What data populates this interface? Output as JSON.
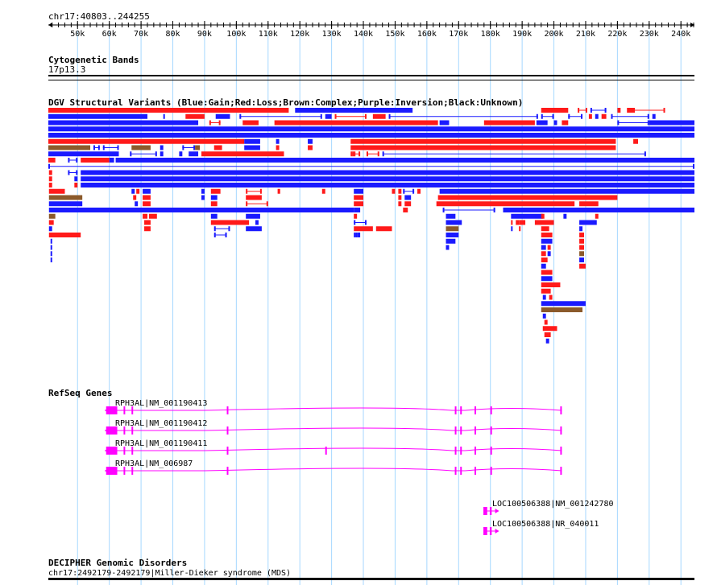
{
  "region": {
    "label": "chr17:40803..244255",
    "start": 40803,
    "end": 244255
  },
  "ruler": {
    "ticks": [
      "50k",
      "60k",
      "70k",
      "80k",
      "90k",
      "100k",
      "110k",
      "120k",
      "130k",
      "140k",
      "150k",
      "160k",
      "170k",
      "180k",
      "190k",
      "200k",
      "210k",
      "220k",
      "230k",
      "240k"
    ]
  },
  "tracks": {
    "cytoband": {
      "title": "Cytogenetic Bands",
      "band": "17p13.3"
    },
    "dgv": {
      "title": "DGV Structural Variants (Blue:Gain;Red:Loss;Brown:Complex;Purple:Inversion;Black:Unknown)"
    },
    "refseq": {
      "title": "RefSeq Genes"
    },
    "decipher": {
      "title": "DECIPHER Genomic Disorders",
      "label": "chr17:2492179-2492179|Miller-Dieker syndrome (MDS)"
    }
  },
  "colors": {
    "gain": "#1a1aff",
    "loss": "#ff1a1a",
    "complex": "#8b5a2b",
    "gene": "#ff00ff",
    "grid": "#a6d8ff"
  },
  "genes": [
    {
      "label": "RPH3AL|NM_001190413",
      "start": 59000,
      "end": 202500,
      "strand": "-",
      "exons": [
        [
          59000,
          62500
        ],
        [
          64500,
          65000
        ],
        [
          67000,
          67500
        ],
        [
          97000,
          97500
        ],
        [
          168800,
          169300
        ],
        [
          170500,
          171000
        ],
        [
          175000,
          175500
        ],
        [
          180000,
          180500
        ],
        [
          202000,
          202500
        ]
      ]
    },
    {
      "label": "RPH3AL|NM_001190412",
      "start": 59000,
      "end": 202500,
      "strand": "-",
      "exons": [
        [
          59000,
          62500
        ],
        [
          64500,
          65000
        ],
        [
          67000,
          67500
        ],
        [
          97000,
          97500
        ],
        [
          168800,
          169300
        ],
        [
          170500,
          171000
        ],
        [
          175000,
          175500
        ],
        [
          180000,
          180500
        ],
        [
          202000,
          202500
        ]
      ]
    },
    {
      "label": "RPH3AL|NM_001190411",
      "start": 59000,
      "end": 202500,
      "strand": "-",
      "exons": [
        [
          59000,
          62500
        ],
        [
          64500,
          65000
        ],
        [
          67000,
          67500
        ],
        [
          97000,
          97500
        ],
        [
          128000,
          128500
        ],
        [
          168800,
          169300
        ],
        [
          170500,
          171000
        ],
        [
          175000,
          175500
        ],
        [
          180000,
          180500
        ],
        [
          202000,
          202500
        ]
      ]
    },
    {
      "label": "RPH3AL|NM_006987",
      "start": 59000,
      "end": 202500,
      "strand": "-",
      "exons": [
        [
          59000,
          62500
        ],
        [
          64500,
          65000
        ],
        [
          67000,
          67500
        ],
        [
          97000,
          97500
        ],
        [
          168800,
          169300
        ],
        [
          170500,
          171000
        ],
        [
          175000,
          175500
        ],
        [
          180000,
          180500
        ],
        [
          202000,
          202500
        ]
      ]
    },
    {
      "label": "LOC100506388|NM_001242780",
      "start": 177800,
      "end": 182000,
      "strand": "+",
      "exons": [
        [
          177800,
          179000
        ],
        [
          179800,
          180400
        ]
      ]
    },
    {
      "label": "LOC100506388|NR_040011",
      "start": 177800,
      "end": 182000,
      "strand": "+",
      "exons": [
        [
          177800,
          179000
        ],
        [
          179800,
          180400
        ]
      ]
    }
  ],
  "dgv_rows": [
    [
      [
        40803,
        116500,
        "L"
      ],
      [
        118500,
        155500,
        "G"
      ],
      [
        196000,
        204500,
        "L"
      ],
      [
        207500,
        210500,
        "L",
        1
      ],
      [
        211500,
        216500,
        "G",
        1
      ],
      [
        220000,
        221000,
        "L"
      ],
      [
        223000,
        225500,
        "L"
      ],
      [
        224500,
        235000,
        "L",
        1
      ]
    ],
    [
      [
        40803,
        72000,
        "G"
      ],
      [
        77000,
        77500,
        "G"
      ],
      [
        84000,
        90000,
        "L"
      ],
      [
        93500,
        98000,
        "G"
      ],
      [
        101000,
        127000,
        "G",
        1
      ],
      [
        128000,
        130000,
        "G"
      ],
      [
        131000,
        141000,
        "L",
        1
      ],
      [
        143000,
        147000,
        "L"
      ],
      [
        148000,
        195000,
        "G",
        1
      ],
      [
        196000,
        200000,
        "G",
        1
      ],
      [
        204500,
        209000,
        "G",
        1
      ],
      [
        211000,
        212000,
        "L"
      ],
      [
        213000,
        214000,
        "G"
      ],
      [
        215000,
        216500,
        "L"
      ],
      [
        218000,
        230000,
        "G",
        1
      ],
      [
        231000,
        232000,
        "G"
      ]
    ],
    [
      [
        40803,
        88000,
        "G"
      ],
      [
        91500,
        95000,
        "L",
        1
      ],
      [
        102000,
        107000,
        "L"
      ],
      [
        112000,
        163500,
        "L"
      ],
      [
        164000,
        167000,
        "G"
      ],
      [
        178000,
        194000,
        "L"
      ],
      [
        194500,
        198000,
        "G"
      ],
      [
        200000,
        201000,
        "G"
      ],
      [
        202500,
        204500,
        "L"
      ],
      [
        220000,
        230000,
        "G",
        1
      ],
      [
        230000,
        244255,
        "G"
      ]
    ],
    [
      [
        40803,
        244255,
        "G"
      ]
    ],
    [
      [
        40803,
        244255,
        "G"
      ]
    ],
    [
      [
        40803,
        102500,
        "L"
      ],
      [
        102500,
        107500,
        "G"
      ],
      [
        112500,
        113500,
        "G"
      ],
      [
        122500,
        124000,
        "G"
      ],
      [
        136000,
        219500,
        "L"
      ],
      [
        225000,
        226500,
        "L"
      ]
    ],
    [
      [
        40803,
        54000,
        "C"
      ],
      [
        55000,
        57000,
        "G",
        1
      ],
      [
        58000,
        63000,
        "G",
        1
      ],
      [
        67000,
        73000,
        "C"
      ],
      [
        76000,
        77000,
        "G"
      ],
      [
        83000,
        87000,
        "G",
        1
      ],
      [
        87000,
        88500,
        "C"
      ],
      [
        93000,
        95500,
        "L"
      ],
      [
        102500,
        107500,
        "G"
      ],
      [
        112500,
        113500,
        "L"
      ],
      [
        122500,
        124000,
        "L"
      ],
      [
        136000,
        219500,
        "L"
      ]
    ],
    [
      [
        40803,
        63000,
        "G"
      ],
      [
        66500,
        75000,
        "G",
        1
      ],
      [
        76000,
        77000,
        "G"
      ],
      [
        82000,
        83000,
        "G"
      ],
      [
        85000,
        88000,
        "G"
      ],
      [
        89000,
        115000,
        "L"
      ],
      [
        136000,
        137000,
        "L",
        1
      ],
      [
        137000,
        139000,
        "L",
        1
      ],
      [
        141000,
        145000,
        "L",
        1
      ],
      [
        146000,
        229000,
        "G",
        1
      ]
    ],
    [
      [
        40803,
        43000,
        "L"
      ],
      [
        47000,
        50000,
        "G",
        1
      ],
      [
        51000,
        60000,
        "L"
      ],
      [
        60000,
        61500,
        "G"
      ],
      [
        62000,
        244255,
        "G"
      ]
    ],
    [
      [
        40803,
        244255,
        "G",
        1
      ]
    ],
    [
      [
        41000,
        42000,
        "L"
      ],
      [
        47000,
        50000,
        "G",
        1
      ],
      [
        51000,
        244255,
        "G"
      ]
    ],
    [
      [
        41000,
        42000,
        "L"
      ],
      [
        49000,
        50000,
        "G"
      ],
      [
        51000,
        244255,
        "G"
      ]
    ],
    [
      [
        41000,
        42000,
        "L"
      ],
      [
        49000,
        50000,
        "L"
      ],
      [
        51000,
        244255,
        "G"
      ]
    ],
    [
      [
        41000,
        46000,
        "L"
      ],
      [
        67000,
        68000,
        "G"
      ],
      [
        68500,
        69500,
        "L"
      ],
      [
        70500,
        73000,
        "G"
      ],
      [
        89000,
        90000,
        "G"
      ],
      [
        92000,
        95000,
        "L"
      ],
      [
        103000,
        108000,
        "L",
        1
      ],
      [
        113000,
        113800,
        "L"
      ],
      [
        127000,
        128000,
        "L"
      ],
      [
        137000,
        140000,
        "G"
      ],
      [
        149000,
        150000,
        "L"
      ],
      [
        151000,
        152000,
        "L"
      ],
      [
        152500,
        156000,
        "G",
        1
      ],
      [
        157000,
        158000,
        "L"
      ],
      [
        164000,
        244255,
        "G"
      ]
    ],
    [
      [
        41000,
        51500,
        "C"
      ],
      [
        67500,
        68500,
        "L"
      ],
      [
        70500,
        73000,
        "L"
      ],
      [
        89000,
        90000,
        "G"
      ],
      [
        92000,
        94000,
        "G"
      ],
      [
        103000,
        108000,
        "L"
      ],
      [
        137000,
        140000,
        "L"
      ],
      [
        151000,
        152000,
        "L"
      ],
      [
        153000,
        155000,
        "G"
      ],
      [
        163500,
        220000,
        "L"
      ]
    ],
    [
      [
        41000,
        51500,
        "G"
      ],
      [
        68000,
        69000,
        "G"
      ],
      [
        70500,
        73000,
        "L"
      ],
      [
        92000,
        94000,
        "L"
      ],
      [
        103000,
        110000,
        "L",
        1
      ],
      [
        137000,
        140000,
        "L"
      ],
      [
        151000,
        152000,
        "L"
      ],
      [
        153000,
        155000,
        "L"
      ],
      [
        163000,
        206500,
        "L"
      ],
      [
        208000,
        214000,
        "L"
      ]
    ],
    [
      [
        41000,
        137000,
        "G"
      ],
      [
        137000,
        139000,
        "G"
      ],
      [
        152500,
        154000,
        "L"
      ],
      [
        165000,
        181500,
        "G",
        1
      ],
      [
        184000,
        244255,
        "G"
      ]
    ],
    [
      [
        41000,
        43000,
        "C"
      ],
      [
        70500,
        72000,
        "L"
      ],
      [
        72500,
        75000,
        "L"
      ],
      [
        92000,
        94000,
        "G"
      ],
      [
        103000,
        107500,
        "G"
      ],
      [
        137000,
        138000,
        "L"
      ],
      [
        166000,
        169000,
        "G"
      ],
      [
        186500,
        196500,
        "G"
      ],
      [
        196000,
        197000,
        "L"
      ],
      [
        203000,
        204000,
        "G"
      ],
      [
        213000,
        214000,
        "L"
      ]
    ],
    [
      [
        41000,
        42500,
        "L"
      ],
      [
        71000,
        73000,
        "L"
      ],
      [
        92000,
        104000,
        "L"
      ],
      [
        106000,
        107000,
        "G"
      ],
      [
        137000,
        141000,
        "G",
        1
      ],
      [
        166000,
        171000,
        "G"
      ],
      [
        186500,
        187000,
        "L"
      ],
      [
        188000,
        189000,
        "L"
      ],
      [
        189000,
        191000,
        "L"
      ],
      [
        194000,
        200000,
        "L"
      ],
      [
        208000,
        213500,
        "G"
      ]
    ],
    [
      [
        41000,
        42000,
        "G"
      ],
      [
        71000,
        73000,
        "L"
      ],
      [
        93000,
        98000,
        "G",
        1
      ],
      [
        103000,
        108000,
        "G"
      ],
      [
        137000,
        143000,
        "L"
      ],
      [
        144000,
        149000,
        "L"
      ],
      [
        166000,
        170000,
        "C"
      ],
      [
        186500,
        187000,
        "G"
      ],
      [
        189000,
        189500,
        "L"
      ],
      [
        196000,
        198500,
        "L"
      ],
      [
        208000,
        209000,
        "G"
      ]
    ],
    [
      [
        41000,
        51000,
        "L"
      ],
      [
        93000,
        97000,
        "G",
        1
      ],
      [
        137000,
        138000,
        "G",
        1
      ],
      [
        138000,
        139000,
        "G"
      ],
      [
        166000,
        170000,
        "G"
      ],
      [
        196000,
        199500,
        "L"
      ],
      [
        208000,
        209500,
        "L"
      ]
    ],
    [
      [
        41500,
        42000,
        "G"
      ],
      [
        166000,
        169000,
        "G"
      ],
      [
        196000,
        199500,
        "G"
      ],
      [
        208000,
        209500,
        "L"
      ]
    ],
    [
      [
        41500,
        42000,
        "G"
      ],
      [
        166000,
        167000,
        "G"
      ],
      [
        196000,
        197500,
        "G"
      ],
      [
        198000,
        199000,
        "L"
      ],
      [
        208000,
        209500,
        "L"
      ]
    ],
    [
      [
        41500,
        42000,
        "G"
      ],
      [
        196000,
        197500,
        "L"
      ],
      [
        198000,
        199000,
        "G"
      ],
      [
        208000,
        209500,
        "C"
      ]
    ],
    [
      [
        41500,
        42000,
        "G"
      ],
      [
        196000,
        198000,
        "L"
      ],
      [
        208000,
        209500,
        "G"
      ]
    ],
    [
      [
        196000,
        197500,
        "G"
      ],
      [
        208000,
        210000,
        "L"
      ]
    ],
    [
      [
        196000,
        199500,
        "L"
      ]
    ],
    [
      [
        196000,
        199500,
        "G"
      ]
    ],
    [
      [
        196000,
        202000,
        "L"
      ]
    ],
    [
      [
        196000,
        199000,
        "L"
      ]
    ],
    [
      [
        196500,
        197500,
        "G"
      ],
      [
        198500,
        199500,
        "L"
      ]
    ],
    [
      [
        196000,
        210000,
        "G"
      ]
    ],
    [
      [
        196000,
        209000,
        "C"
      ]
    ],
    [
      [
        196500,
        197500,
        "G"
      ]
    ],
    [
      [
        197000,
        198000,
        "L"
      ]
    ],
    [
      [
        196500,
        201000,
        "L"
      ]
    ],
    [
      [
        197000,
        199000,
        "L"
      ]
    ],
    [
      [
        197500,
        198500,
        "G"
      ]
    ]
  ]
}
